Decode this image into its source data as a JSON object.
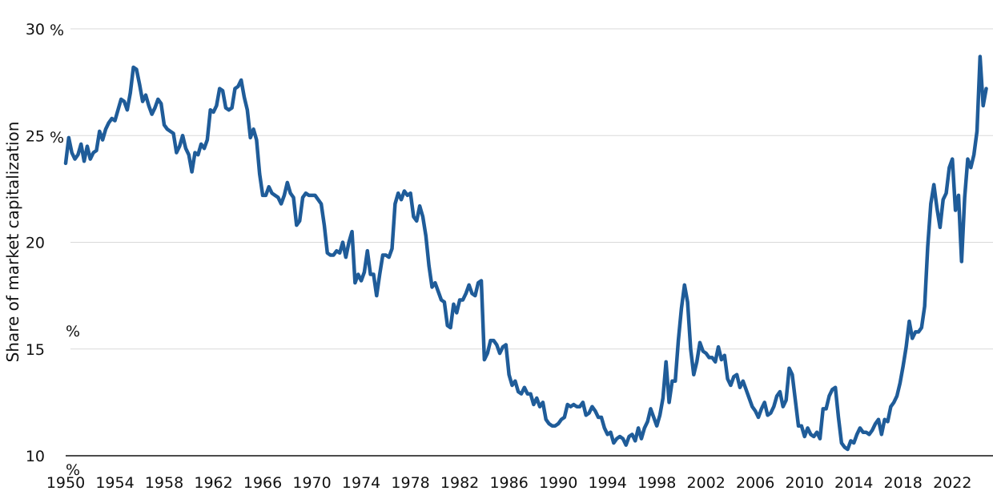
{
  "chart_data": {
    "type": "line",
    "title": "",
    "xlabel": "",
    "ylabel": "Share of market capitalization",
    "y_unit": "%",
    "ylim": [
      10,
      30
    ],
    "xlim": [
      1950,
      2025.3
    ],
    "y_ticks": [
      10,
      15,
      20,
      25,
      30
    ],
    "x_ticks": [
      1950,
      1954,
      1958,
      1962,
      1966,
      1970,
      1974,
      1978,
      1982,
      1986,
      1990,
      1994,
      1998,
      2002,
      2006,
      2010,
      2014,
      2018,
      2022
    ],
    "grid": "horizontal",
    "line_color": "#1f5c99",
    "series": [
      {
        "points": [
          [
            1950.0,
            23.7
          ],
          [
            1950.25,
            24.9
          ],
          [
            1950.5,
            24.2
          ],
          [
            1950.75,
            23.9
          ],
          [
            1951.0,
            24.1
          ],
          [
            1951.25,
            24.6
          ],
          [
            1951.5,
            23.8
          ],
          [
            1951.75,
            24.5
          ],
          [
            1952.0,
            23.9
          ],
          [
            1952.25,
            24.2
          ],
          [
            1952.5,
            24.3
          ],
          [
            1952.75,
            25.2
          ],
          [
            1953.0,
            24.8
          ],
          [
            1953.25,
            25.3
          ],
          [
            1953.5,
            25.6
          ],
          [
            1953.75,
            25.8
          ],
          [
            1954.0,
            25.7
          ],
          [
            1954.25,
            26.2
          ],
          [
            1954.5,
            26.7
          ],
          [
            1954.75,
            26.6
          ],
          [
            1955.0,
            26.2
          ],
          [
            1955.25,
            27.0
          ],
          [
            1955.5,
            28.2
          ],
          [
            1955.75,
            28.1
          ],
          [
            1956.0,
            27.4
          ],
          [
            1956.25,
            26.6
          ],
          [
            1956.5,
            26.9
          ],
          [
            1956.75,
            26.4
          ],
          [
            1957.0,
            26.0
          ],
          [
            1957.25,
            26.3
          ],
          [
            1957.5,
            26.7
          ],
          [
            1957.75,
            26.5
          ],
          [
            1958.0,
            25.5
          ],
          [
            1958.25,
            25.3
          ],
          [
            1958.5,
            25.2
          ],
          [
            1958.75,
            25.1
          ],
          [
            1959.0,
            24.2
          ],
          [
            1959.25,
            24.5
          ],
          [
            1959.5,
            25.0
          ],
          [
            1959.75,
            24.4
          ],
          [
            1960.0,
            24.1
          ],
          [
            1960.25,
            23.3
          ],
          [
            1960.5,
            24.2
          ],
          [
            1960.75,
            24.1
          ],
          [
            1961.0,
            24.6
          ],
          [
            1961.25,
            24.4
          ],
          [
            1961.5,
            24.8
          ],
          [
            1961.75,
            26.2
          ],
          [
            1962.0,
            26.1
          ],
          [
            1962.25,
            26.4
          ],
          [
            1962.5,
            27.2
          ],
          [
            1962.75,
            27.1
          ],
          [
            1963.0,
            26.3
          ],
          [
            1963.25,
            26.2
          ],
          [
            1963.5,
            26.3
          ],
          [
            1963.75,
            27.2
          ],
          [
            1964.0,
            27.3
          ],
          [
            1964.25,
            27.6
          ],
          [
            1964.5,
            26.8
          ],
          [
            1964.75,
            26.2
          ],
          [
            1965.0,
            24.9
          ],
          [
            1965.25,
            25.3
          ],
          [
            1965.5,
            24.8
          ],
          [
            1965.75,
            23.2
          ],
          [
            1966.0,
            22.2
          ],
          [
            1966.25,
            22.2
          ],
          [
            1966.5,
            22.6
          ],
          [
            1966.75,
            22.3
          ],
          [
            1967.0,
            22.2
          ],
          [
            1967.25,
            22.1
          ],
          [
            1967.5,
            21.8
          ],
          [
            1967.75,
            22.2
          ],
          [
            1968.0,
            22.8
          ],
          [
            1968.25,
            22.3
          ],
          [
            1968.5,
            22.1
          ],
          [
            1968.75,
            20.8
          ],
          [
            1969.0,
            21.0
          ],
          [
            1969.25,
            22.1
          ],
          [
            1969.5,
            22.3
          ],
          [
            1969.75,
            22.2
          ],
          [
            1970.0,
            22.2
          ],
          [
            1970.25,
            22.2
          ],
          [
            1970.5,
            22.0
          ],
          [
            1970.75,
            21.8
          ],
          [
            1971.0,
            20.8
          ],
          [
            1971.25,
            19.5
          ],
          [
            1971.5,
            19.4
          ],
          [
            1971.75,
            19.4
          ],
          [
            1972.0,
            19.6
          ],
          [
            1972.25,
            19.5
          ],
          [
            1972.5,
            20.0
          ],
          [
            1972.75,
            19.3
          ],
          [
            1973.0,
            20.0
          ],
          [
            1973.25,
            20.5
          ],
          [
            1973.5,
            18.1
          ],
          [
            1973.75,
            18.5
          ],
          [
            1974.0,
            18.2
          ],
          [
            1974.25,
            18.6
          ],
          [
            1974.5,
            19.6
          ],
          [
            1974.75,
            18.5
          ],
          [
            1975.0,
            18.5
          ],
          [
            1975.25,
            17.5
          ],
          [
            1975.5,
            18.5
          ],
          [
            1975.75,
            19.4
          ],
          [
            1976.0,
            19.4
          ],
          [
            1976.25,
            19.3
          ],
          [
            1976.5,
            19.7
          ],
          [
            1976.75,
            21.8
          ],
          [
            1977.0,
            22.3
          ],
          [
            1977.25,
            22.0
          ],
          [
            1977.5,
            22.4
          ],
          [
            1977.75,
            22.2
          ],
          [
            1978.0,
            22.3
          ],
          [
            1978.25,
            21.2
          ],
          [
            1978.5,
            21.0
          ],
          [
            1978.75,
            21.7
          ],
          [
            1979.0,
            21.2
          ],
          [
            1979.25,
            20.3
          ],
          [
            1979.5,
            18.9
          ],
          [
            1979.75,
            17.9
          ],
          [
            1980.0,
            18.1
          ],
          [
            1980.25,
            17.7
          ],
          [
            1980.5,
            17.3
          ],
          [
            1980.75,
            17.2
          ],
          [
            1981.0,
            16.1
          ],
          [
            1981.25,
            16.0
          ],
          [
            1981.5,
            17.1
          ],
          [
            1981.75,
            16.7
          ],
          [
            1982.0,
            17.3
          ],
          [
            1982.25,
            17.3
          ],
          [
            1982.5,
            17.6
          ],
          [
            1982.75,
            18.0
          ],
          [
            1983.0,
            17.6
          ],
          [
            1983.25,
            17.5
          ],
          [
            1983.5,
            18.1
          ],
          [
            1983.75,
            18.2
          ],
          [
            1984.0,
            14.5
          ],
          [
            1984.25,
            14.8
          ],
          [
            1984.5,
            15.4
          ],
          [
            1984.75,
            15.4
          ],
          [
            1985.0,
            15.2
          ],
          [
            1985.25,
            14.8
          ],
          [
            1985.5,
            15.1
          ],
          [
            1985.75,
            15.2
          ],
          [
            1986.0,
            13.8
          ],
          [
            1986.25,
            13.3
          ],
          [
            1986.5,
            13.5
          ],
          [
            1986.75,
            13.0
          ],
          [
            1987.0,
            12.9
          ],
          [
            1987.25,
            13.2
          ],
          [
            1987.5,
            12.9
          ],
          [
            1987.75,
            12.9
          ],
          [
            1988.0,
            12.4
          ],
          [
            1988.25,
            12.7
          ],
          [
            1988.5,
            12.3
          ],
          [
            1988.75,
            12.5
          ],
          [
            1989.0,
            11.7
          ],
          [
            1989.25,
            11.5
          ],
          [
            1989.5,
            11.4
          ],
          [
            1989.75,
            11.4
          ],
          [
            1990.0,
            11.5
          ],
          [
            1990.25,
            11.7
          ],
          [
            1990.5,
            11.8
          ],
          [
            1990.75,
            12.4
          ],
          [
            1991.0,
            12.3
          ],
          [
            1991.25,
            12.4
          ],
          [
            1991.5,
            12.3
          ],
          [
            1991.75,
            12.3
          ],
          [
            1992.0,
            12.5
          ],
          [
            1992.25,
            11.9
          ],
          [
            1992.5,
            12.0
          ],
          [
            1992.75,
            12.3
          ],
          [
            1993.0,
            12.1
          ],
          [
            1993.25,
            11.8
          ],
          [
            1993.5,
            11.8
          ],
          [
            1993.75,
            11.3
          ],
          [
            1994.0,
            11.0
          ],
          [
            1994.25,
            11.1
          ],
          [
            1994.5,
            10.6
          ],
          [
            1994.75,
            10.8
          ],
          [
            1995.0,
            10.9
          ],
          [
            1995.25,
            10.8
          ],
          [
            1995.5,
            10.5
          ],
          [
            1995.75,
            10.9
          ],
          [
            1996.0,
            11.0
          ],
          [
            1996.25,
            10.7
          ],
          [
            1996.5,
            11.3
          ],
          [
            1996.75,
            10.8
          ],
          [
            1997.0,
            11.3
          ],
          [
            1997.25,
            11.6
          ],
          [
            1997.5,
            12.2
          ],
          [
            1997.75,
            11.8
          ],
          [
            1998.0,
            11.4
          ],
          [
            1998.25,
            11.9
          ],
          [
            1998.5,
            12.7
          ],
          [
            1998.75,
            14.4
          ],
          [
            1999.0,
            12.5
          ],
          [
            1999.25,
            13.5
          ],
          [
            1999.5,
            13.5
          ],
          [
            1999.75,
            15.4
          ],
          [
            2000.0,
            16.9
          ],
          [
            2000.25,
            18.0
          ],
          [
            2000.5,
            17.2
          ],
          [
            2000.75,
            15.0
          ],
          [
            2001.0,
            13.8
          ],
          [
            2001.25,
            14.4
          ],
          [
            2001.5,
            15.3
          ],
          [
            2001.75,
            14.9
          ],
          [
            2002.0,
            14.8
          ],
          [
            2002.25,
            14.6
          ],
          [
            2002.5,
            14.6
          ],
          [
            2002.75,
            14.4
          ],
          [
            2003.0,
            15.1
          ],
          [
            2003.25,
            14.5
          ],
          [
            2003.5,
            14.7
          ],
          [
            2003.75,
            13.6
          ],
          [
            2004.0,
            13.3
          ],
          [
            2004.25,
            13.7
          ],
          [
            2004.5,
            13.8
          ],
          [
            2004.75,
            13.2
          ],
          [
            2005.0,
            13.5
          ],
          [
            2005.25,
            13.1
          ],
          [
            2005.5,
            12.7
          ],
          [
            2005.75,
            12.3
          ],
          [
            2006.0,
            12.1
          ],
          [
            2006.25,
            11.8
          ],
          [
            2006.5,
            12.2
          ],
          [
            2006.75,
            12.5
          ],
          [
            2007.0,
            11.9
          ],
          [
            2007.25,
            12.0
          ],
          [
            2007.5,
            12.3
          ],
          [
            2007.75,
            12.8
          ],
          [
            2008.0,
            13.0
          ],
          [
            2008.25,
            12.3
          ],
          [
            2008.5,
            12.6
          ],
          [
            2008.75,
            14.1
          ],
          [
            2009.0,
            13.8
          ],
          [
            2009.25,
            12.6
          ],
          [
            2009.5,
            11.4
          ],
          [
            2009.75,
            11.4
          ],
          [
            2010.0,
            10.9
          ],
          [
            2010.25,
            11.3
          ],
          [
            2010.5,
            11.0
          ],
          [
            2010.75,
            10.9
          ],
          [
            2011.0,
            11.1
          ],
          [
            2011.25,
            10.8
          ],
          [
            2011.5,
            12.2
          ],
          [
            2011.75,
            12.2
          ],
          [
            2012.0,
            12.8
          ],
          [
            2012.25,
            13.1
          ],
          [
            2012.5,
            13.2
          ],
          [
            2012.75,
            11.8
          ],
          [
            2013.0,
            10.6
          ],
          [
            2013.25,
            10.4
          ],
          [
            2013.5,
            10.3
          ],
          [
            2013.75,
            10.7
          ],
          [
            2014.0,
            10.6
          ],
          [
            2014.25,
            11.0
          ],
          [
            2014.5,
            11.3
          ],
          [
            2014.75,
            11.1
          ],
          [
            2015.0,
            11.1
          ],
          [
            2015.25,
            11.0
          ],
          [
            2015.5,
            11.2
          ],
          [
            2015.75,
            11.5
          ],
          [
            2016.0,
            11.7
          ],
          [
            2016.25,
            11.0
          ],
          [
            2016.5,
            11.7
          ],
          [
            2016.75,
            11.6
          ],
          [
            2017.0,
            12.3
          ],
          [
            2017.25,
            12.5
          ],
          [
            2017.5,
            12.8
          ],
          [
            2017.75,
            13.4
          ],
          [
            2018.0,
            14.2
          ],
          [
            2018.25,
            15.1
          ],
          [
            2018.5,
            16.3
          ],
          [
            2018.75,
            15.5
          ],
          [
            2019.0,
            15.8
          ],
          [
            2019.25,
            15.8
          ],
          [
            2019.5,
            16.0
          ],
          [
            2019.75,
            17.0
          ],
          [
            2020.0,
            19.8
          ],
          [
            2020.25,
            21.8
          ],
          [
            2020.5,
            22.7
          ],
          [
            2020.75,
            21.6
          ],
          [
            2021.0,
            20.7
          ],
          [
            2021.25,
            22.0
          ],
          [
            2021.5,
            22.3
          ],
          [
            2021.75,
            23.5
          ],
          [
            2022.0,
            23.9
          ],
          [
            2022.25,
            21.5
          ],
          [
            2022.5,
            22.2
          ],
          [
            2022.75,
            19.1
          ],
          [
            2023.0,
            22.1
          ],
          [
            2023.25,
            23.9
          ],
          [
            2023.5,
            23.5
          ],
          [
            2023.75,
            24.1
          ],
          [
            2024.0,
            25.2
          ],
          [
            2024.25,
            28.7
          ],
          [
            2024.5,
            26.4
          ],
          [
            2024.75,
            27.2
          ]
        ]
      }
    ]
  }
}
